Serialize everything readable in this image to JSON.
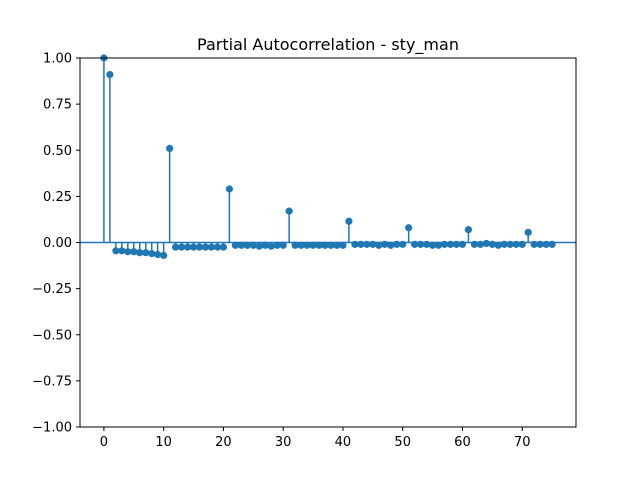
{
  "chart_data": {
    "type": "stem",
    "title": "Partial Autocorrelation - sty_man",
    "xlabel": "",
    "ylabel": "",
    "xlim": [
      -4,
      79
    ],
    "ylim": [
      -1.0,
      1.0
    ],
    "x_ticks": [
      0,
      10,
      20,
      30,
      40,
      50,
      60,
      70
    ],
    "y_ticks": [
      -1.0,
      -0.75,
      -0.5,
      -0.25,
      0.0,
      0.25,
      0.5,
      0.75,
      1.0
    ],
    "y_tick_labels": [
      "−1.00",
      "−0.75",
      "−0.50",
      "−0.25",
      "0.00",
      "0.25",
      "0.50",
      "0.75",
      "1.00"
    ],
    "grid": false,
    "color": "#1f77b4",
    "lags": [
      0,
      1,
      2,
      3,
      4,
      5,
      6,
      7,
      8,
      9,
      10,
      11,
      12,
      13,
      14,
      15,
      16,
      17,
      18,
      19,
      20,
      21,
      22,
      23,
      24,
      25,
      26,
      27,
      28,
      29,
      30,
      31,
      32,
      33,
      34,
      35,
      36,
      37,
      38,
      39,
      40,
      41,
      42,
      43,
      44,
      45,
      46,
      47,
      48,
      49,
      50,
      51,
      52,
      53,
      54,
      55,
      56,
      57,
      58,
      59,
      60,
      61,
      62,
      63,
      64,
      65,
      66,
      67,
      68,
      69,
      70,
      71,
      72,
      73,
      74,
      75
    ],
    "values": [
      1.0,
      0.91,
      -0.045,
      -0.045,
      -0.05,
      -0.05,
      -0.055,
      -0.055,
      -0.06,
      -0.065,
      -0.07,
      0.51,
      -0.025,
      -0.025,
      -0.025,
      -0.025,
      -0.025,
      -0.025,
      -0.025,
      -0.025,
      -0.025,
      0.29,
      -0.015,
      -0.015,
      -0.015,
      -0.015,
      -0.02,
      -0.015,
      -0.02,
      -0.015,
      -0.015,
      0.17,
      -0.015,
      -0.015,
      -0.015,
      -0.015,
      -0.015,
      -0.015,
      -0.015,
      -0.015,
      -0.015,
      0.115,
      -0.01,
      -0.01,
      -0.01,
      -0.01,
      -0.015,
      -0.01,
      -0.015,
      -0.01,
      -0.01,
      0.08,
      -0.01,
      -0.01,
      -0.01,
      -0.015,
      -0.015,
      -0.01,
      -0.01,
      -0.01,
      -0.01,
      0.07,
      -0.01,
      -0.01,
      -0.005,
      -0.01,
      -0.015,
      -0.01,
      -0.01,
      -0.01,
      -0.01,
      0.055,
      -0.01,
      -0.01,
      -0.01,
      -0.01
    ]
  }
}
